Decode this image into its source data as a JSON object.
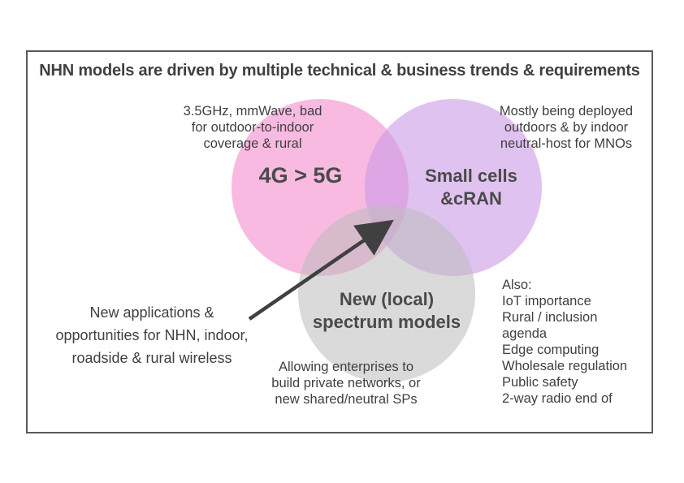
{
  "title": "NHN models are driven by multiple technical & business trends & requirements",
  "circles": {
    "c5g": {
      "label": "4G > 5G",
      "color": "#f48ccc"
    },
    "small_cells": {
      "label_line1": "Small cells",
      "label_line2": "&cRAN",
      "color": "#cc99e6"
    },
    "spectrum": {
      "label_line1": "New (local)",
      "label_line2": "spectrum models",
      "color": "#bbbbbb"
    }
  },
  "notes": {
    "c5g": [
      "3.5GHz, mmWave, bad",
      "for outdoor-to-indoor",
      "coverage & rural"
    ],
    "small_cells": [
      "Mostly being deployed",
      "outdoors & by indoor",
      "neutral-host for MNOs"
    ],
    "spectrum": [
      "Allowing enterprises to",
      "build private networks, or",
      "new shared/neutral SPs"
    ],
    "applications": [
      "New applications &",
      "opportunities for NHN, indoor,",
      "roadside & rural wireless"
    ]
  },
  "also": {
    "heading": "Also:",
    "items": [
      "IoT importance",
      "Rural / inclusion",
      "agenda",
      "Edge computing",
      "Wholesale regulation",
      "Public safety",
      "2-way radio end of"
    ]
  },
  "arrow_color": "#404040"
}
